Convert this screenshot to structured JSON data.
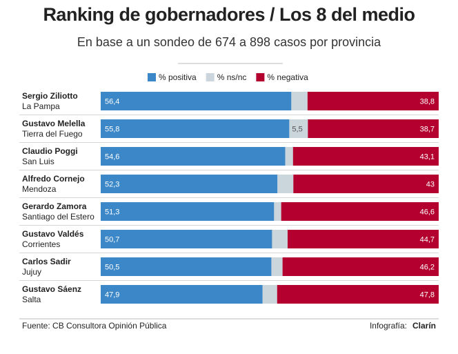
{
  "chart_data": {
    "type": "stacked-bar-horizontal",
    "title": "Ranking de gobernadores / Los 8 del medio",
    "subtitle": "En base a un sondeo de 674 a 898 casos por provincia",
    "categories": [
      "Sergio Ziliotto",
      "Gustavo Melella",
      "Claudio Poggi",
      "Alfredo Cornejo",
      "Gerardo Zamora",
      "Gustavo Valdés",
      "Carlos Sadir",
      "Gustavo Sáenz"
    ],
    "category_sublabels": [
      "La Pampa",
      "Tierra del Fuego",
      "San Luis",
      "Mendoza",
      "Santiago del Estero",
      "Corrientes",
      "Jujuy",
      "Salta"
    ],
    "xlim": [
      0,
      100
    ],
    "series": [
      {
        "name": "% positiva",
        "color": "#3b87c8",
        "values": [
          56.4,
          55.8,
          54.6,
          52.3,
          51.3,
          50.7,
          50.5,
          47.9
        ],
        "value_labels": [
          "56,4",
          "55,8",
          "54,6",
          "52,3",
          "51,3",
          "50,7",
          "50,5",
          "47,9"
        ]
      },
      {
        "name": "% ns/nc",
        "color": "#cbd5dc",
        "values": [
          4.8,
          5.5,
          2.3,
          4.7,
          2.1,
          4.6,
          3.3,
          4.3
        ],
        "value_labels": [
          null,
          "5,5",
          null,
          null,
          null,
          null,
          null,
          null
        ]
      },
      {
        "name": "% negativa",
        "color": "#b3002e",
        "values": [
          38.8,
          38.7,
          43.1,
          43,
          46.6,
          44.7,
          46.2,
          47.8
        ],
        "value_labels": [
          "38,8",
          "38,7",
          "43,1",
          "43",
          "46,6",
          "44,7",
          "46,2",
          "47,8"
        ]
      }
    ],
    "source": "Fuente: CB Consultora Opinión Pública",
    "credit": "Infografía:",
    "credit_brand": "Clarín"
  }
}
